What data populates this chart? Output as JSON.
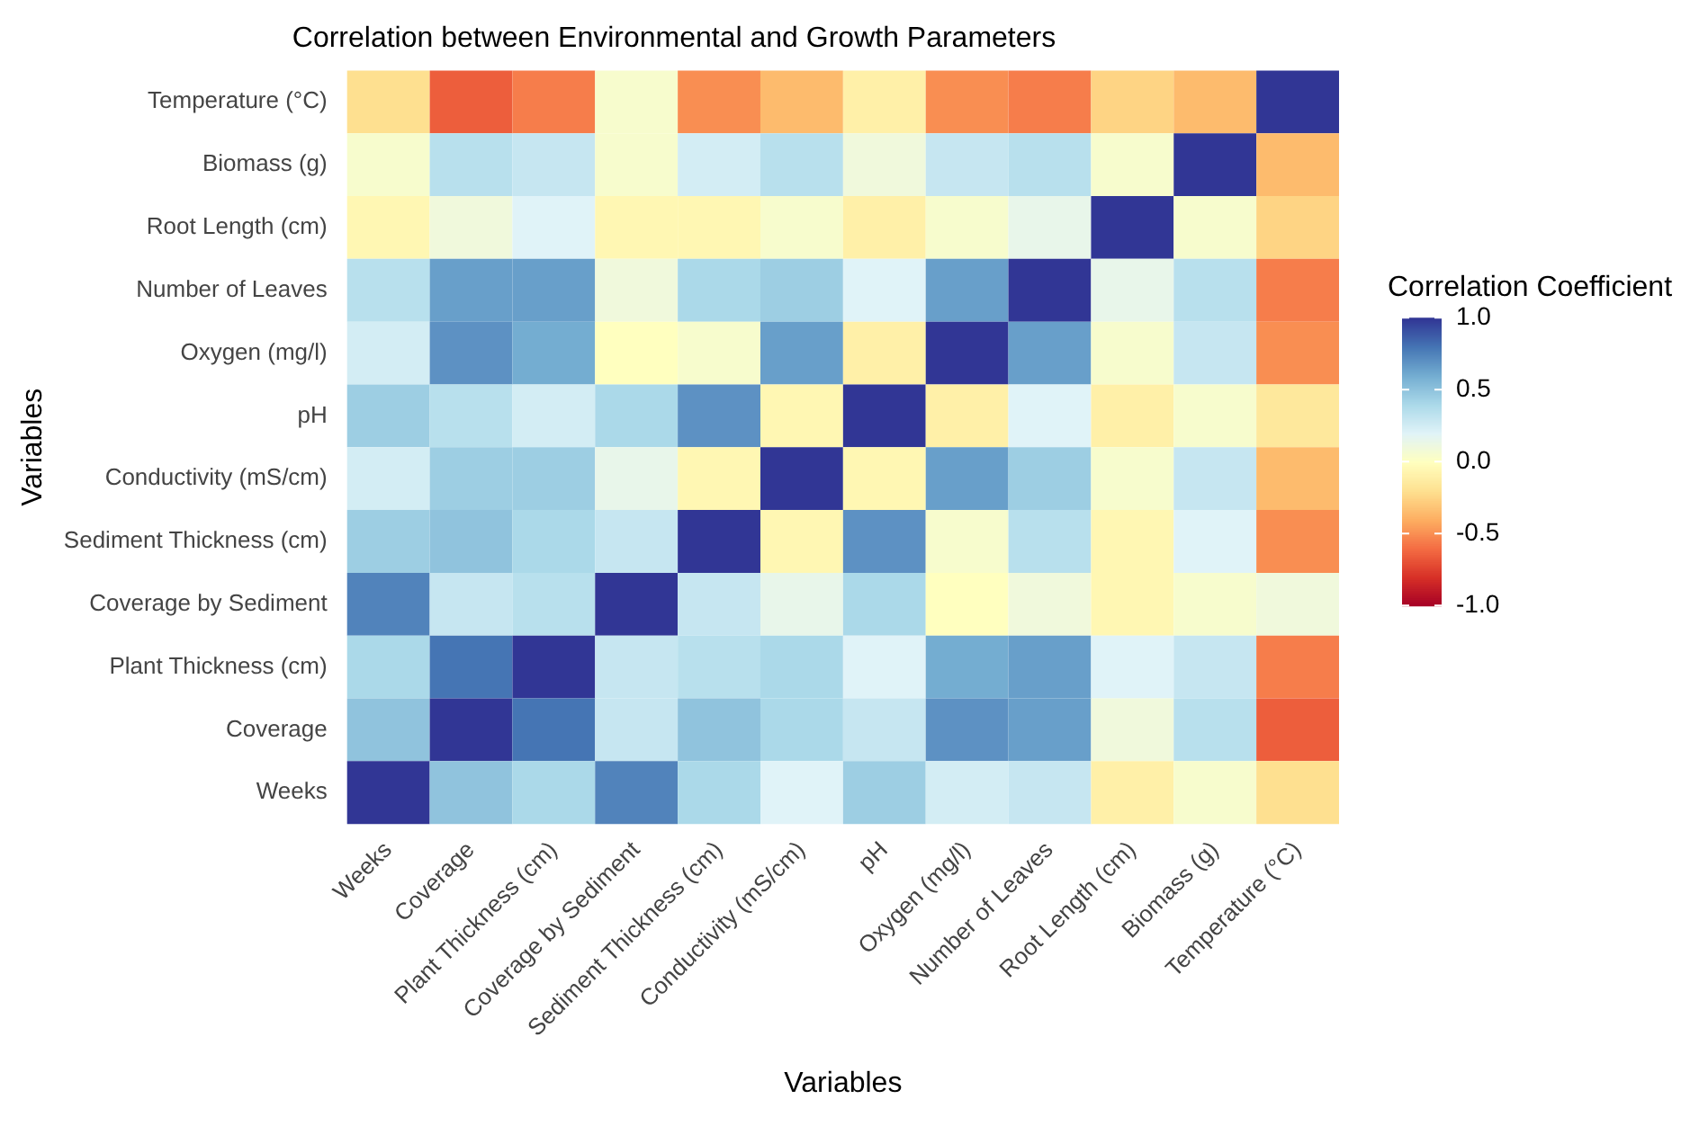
{
  "chart_data": {
    "type": "heatmap",
    "title": "Correlation between Environmental and Growth Parameters",
    "xlabel": "Variables",
    "ylabel": "Variables",
    "clabel": "Correlation Coefficient",
    "categories": [
      "Weeks",
      "Coverage",
      "Plant Thickness (cm)",
      "Coverage by Sediment",
      "Sediment Thickness (cm)",
      "Conductivity (mS/cm)",
      "pH",
      "Oxygen (mg/l)",
      "Number of Leaves",
      "Root Length (cm)",
      "Biomass (g)",
      "Temperature (°C)"
    ],
    "y_categories": [
      "Temperature (°C)",
      "Biomass (g)",
      "Root Length (cm)",
      "Number of Leaves",
      "Oxygen (mg/l)",
      "pH",
      "Conductivity (mS/cm)",
      "Sediment Thickness (cm)",
      "Coverage by Sediment",
      "Plant Thickness (cm)",
      "Coverage",
      "Weeks"
    ],
    "cells": [
      [
        -0.2,
        -0.65,
        -0.55,
        0.05,
        -0.5,
        -0.35,
        -0.1,
        -0.5,
        -0.55,
        -0.25,
        -0.35,
        1
      ],
      [
        0.05,
        0.35,
        0.3,
        0.05,
        0.25,
        0.35,
        0.1,
        0.3,
        0.35,
        0.05,
        1,
        -0.35
      ],
      [
        -0.05,
        0.1,
        0.2,
        -0.05,
        -0.05,
        0.05,
        -0.1,
        0.05,
        0.15,
        1,
        0.05,
        -0.25
      ],
      [
        0.35,
        0.65,
        0.65,
        0.1,
        0.4,
        0.45,
        0.2,
        0.65,
        1,
        0.15,
        0.35,
        -0.55
      ],
      [
        0.25,
        0.7,
        0.6,
        0,
        0.05,
        0.65,
        -0.1,
        1,
        0.65,
        0.05,
        0.3,
        -0.5
      ],
      [
        0.45,
        0.35,
        0.25,
        0.4,
        0.7,
        -0.05,
        1,
        -0.1,
        0.2,
        -0.1,
        0.05,
        -0.15
      ],
      [
        0.25,
        0.45,
        0.45,
        0.15,
        -0.05,
        1,
        -0.05,
        0.65,
        0.45,
        0.05,
        0.3,
        -0.35
      ],
      [
        0.45,
        0.5,
        0.4,
        0.3,
        1,
        -0.05,
        0.7,
        0.05,
        0.35,
        -0.05,
        0.2,
        -0.5
      ],
      [
        0.75,
        0.3,
        0.35,
        1,
        0.3,
        0.15,
        0.4,
        0,
        0.1,
        -0.05,
        0.05,
        0.1
      ],
      [
        0.4,
        0.8,
        1,
        0.3,
        0.35,
        0.4,
        0.2,
        0.6,
        0.65,
        0.2,
        0.3,
        -0.55
      ],
      [
        0.5,
        1,
        0.8,
        0.3,
        0.5,
        0.4,
        0.3,
        0.7,
        0.65,
        0.1,
        0.35,
        -0.65
      ],
      [
        1,
        0.5,
        0.4,
        0.75,
        0.4,
        0.2,
        0.45,
        0.25,
        0.3,
        -0.1,
        0.05,
        -0.2
      ]
    ],
    "clim": [
      -1,
      1
    ],
    "cticks": [
      {
        "value": -1,
        "label": "-1.0"
      },
      {
        "value": -0.5,
        "label": "-0.5"
      },
      {
        "value": 0,
        "label": "0.0"
      },
      {
        "value": 0.5,
        "label": "0.5"
      },
      {
        "value": 1,
        "label": "1.0"
      }
    ],
    "grid": false
  }
}
